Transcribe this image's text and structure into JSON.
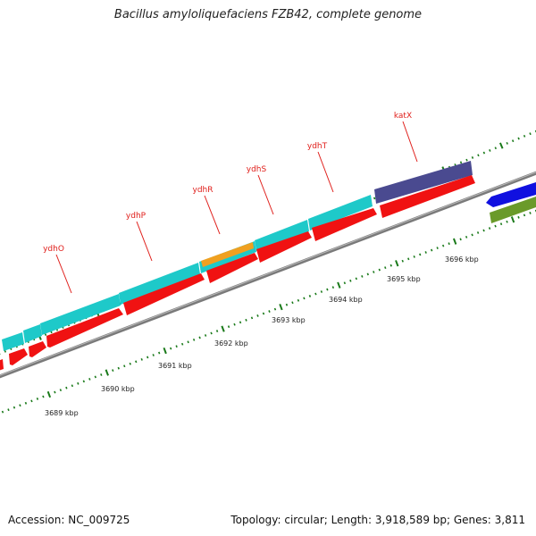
{
  "title": "Bacillus amyloliquefaciens FZB42, complete genome",
  "footer": {
    "accession": "Accession: NC_009725",
    "topology": "Topology: circular; Length: 3,918,589 bp; Genes: 3,811"
  },
  "gene_labels": [
    "ydhO",
    "ydhP",
    "ydhR",
    "ydhS",
    "ydhT",
    "katX"
  ],
  "kbp_labels": [
    "3689 kbp",
    "3690 kbp",
    "3691 kbp",
    "3692 kbp",
    "3693 kbp",
    "3694 kbp",
    "3695 kbp",
    "3696 kbp"
  ],
  "colors": {
    "cyan": "#1ec9c9",
    "red": "#f01212",
    "orange": "#f0a020",
    "navy": "#4a4a90",
    "blue": "#1010e0",
    "olive": "#6a9a2a",
    "backbone": "#808080",
    "tick": "#1a7a1a",
    "label": "#e0201c"
  }
}
